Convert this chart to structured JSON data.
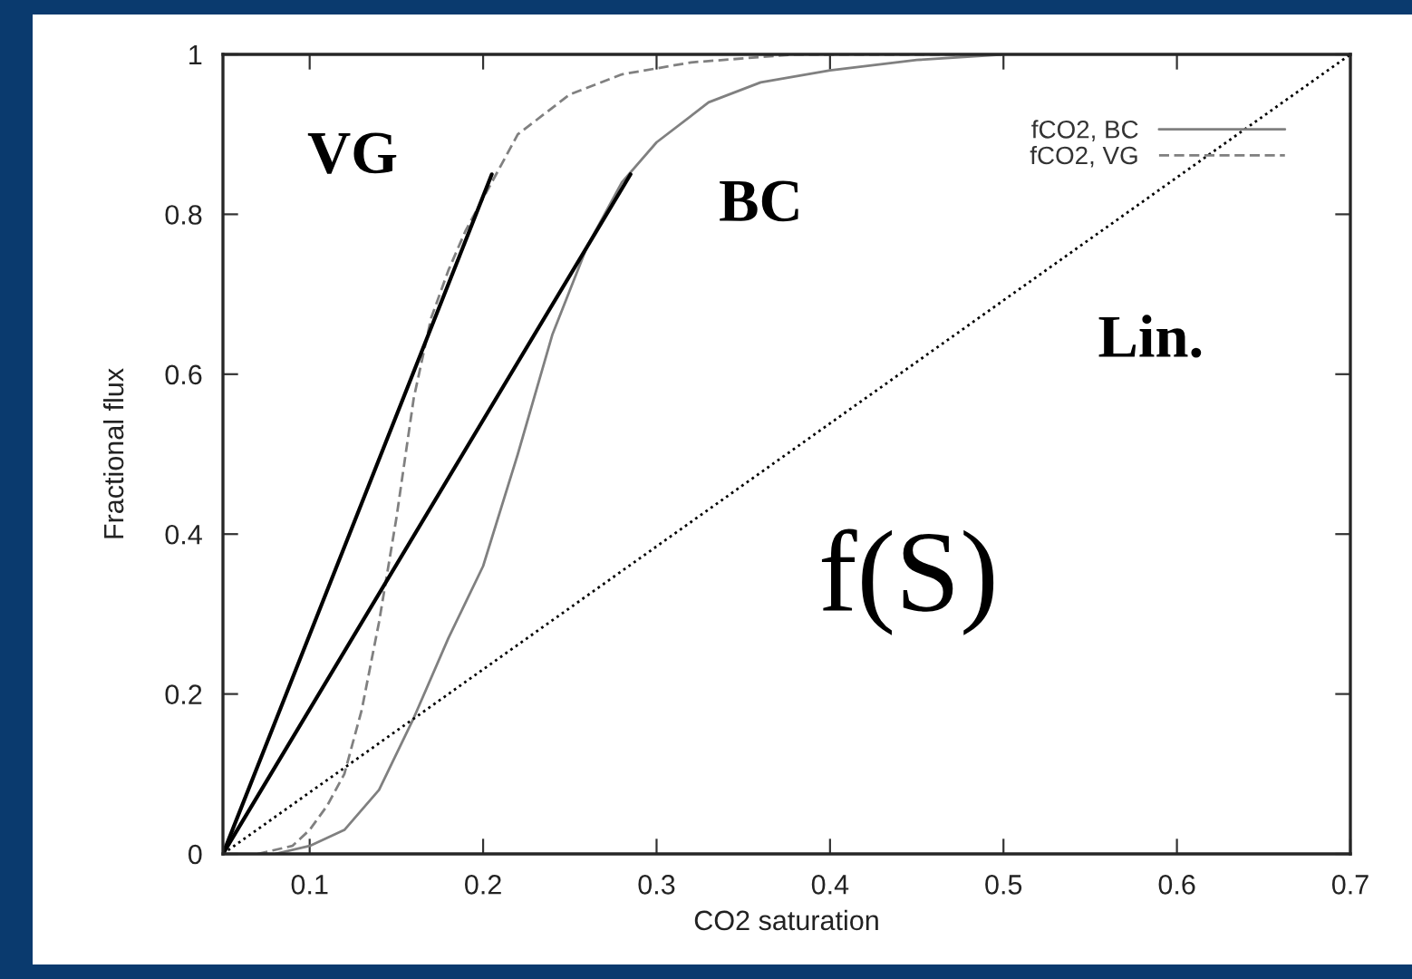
{
  "chart_data": {
    "type": "line",
    "xlabel": "CO2 saturation",
    "ylabel": "Fractional flux",
    "xlim": [
      0.05,
      0.7
    ],
    "ylim": [
      0,
      1
    ],
    "xticks": [
      0.1,
      0.2,
      0.3,
      0.4,
      0.5,
      0.6,
      0.7
    ],
    "yticks": [
      0,
      0.2,
      0.4,
      0.6,
      0.8,
      1
    ],
    "grid": false,
    "legend": "top right",
    "marker": "none",
    "series": [
      {
        "name": "fCO2, BC",
        "color": "#808080",
        "line_style": "solid",
        "x": [
          0.08,
          0.1,
          0.12,
          0.14,
          0.16,
          0.18,
          0.2,
          0.22,
          0.24,
          0.26,
          0.28,
          0.3,
          0.33,
          0.36,
          0.4,
          0.45,
          0.5
        ],
        "values": [
          0,
          0.01,
          0.03,
          0.08,
          0.17,
          0.27,
          0.36,
          0.5,
          0.65,
          0.76,
          0.84,
          0.89,
          0.94,
          0.965,
          0.98,
          0.993,
          1.0
        ]
      },
      {
        "name": "fCO2, VG",
        "color": "#808080",
        "line_style": "dashed",
        "x": [
          0.07,
          0.09,
          0.1,
          0.11,
          0.12,
          0.13,
          0.14,
          0.15,
          0.16,
          0.17,
          0.18,
          0.19,
          0.2,
          0.22,
          0.25,
          0.28,
          0.32,
          0.38,
          0.48
        ],
        "values": [
          0,
          0.01,
          0.03,
          0.06,
          0.1,
          0.18,
          0.29,
          0.42,
          0.57,
          0.67,
          0.73,
          0.78,
          0.82,
          0.9,
          0.95,
          0.975,
          0.99,
          1.0,
          1.0
        ]
      },
      {
        "color": "#000000",
        "line_style": "solid",
        "x": [
          0.05,
          0.205
        ],
        "values": [
          0,
          0.85
        ]
      },
      {
        "color": "#000000",
        "line_style": "solid",
        "x": [
          0.05,
          0.285
        ],
        "values": [
          0,
          0.85
        ]
      },
      {
        "color": "#000000",
        "line_style": "dotted",
        "x": [
          0.05,
          0.7
        ],
        "values": [
          0,
          1
        ]
      }
    ],
    "annotations": [
      "VG",
      "BC",
      "Lin.",
      "f(S)"
    ]
  }
}
